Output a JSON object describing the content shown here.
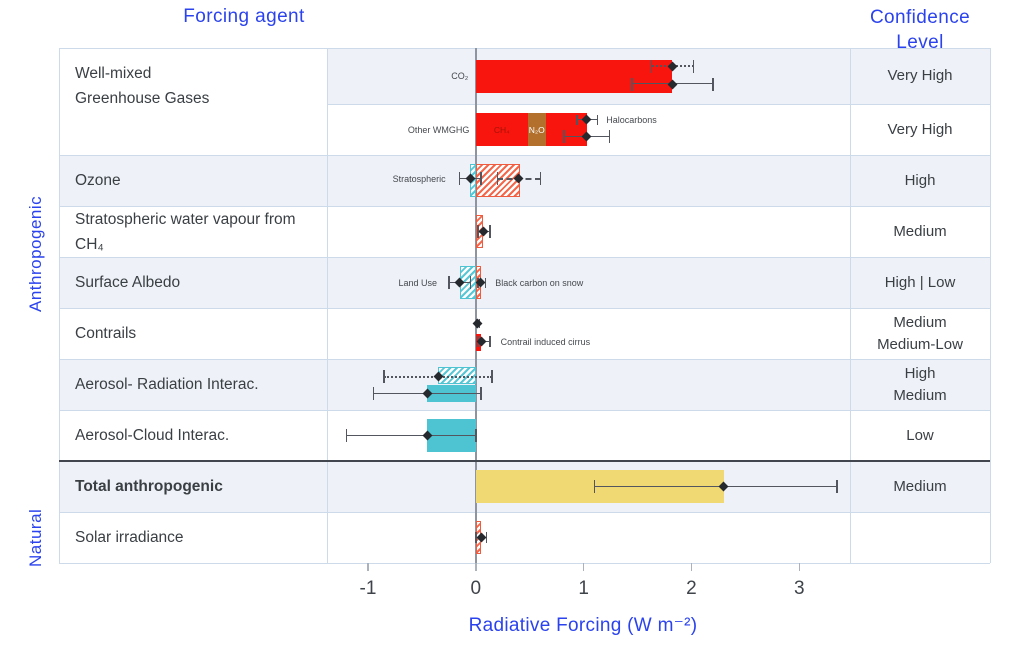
{
  "header": {
    "forcing_agent": "Forcing agent",
    "confidence_level": "Confidence Level"
  },
  "groups": {
    "anthropogenic": "Anthropogenic",
    "natural": "Natural"
  },
  "axis": {
    "label": "Radiative Forcing (W m⁻²)",
    "ticks": [
      -1,
      0,
      1,
      2,
      3
    ]
  },
  "colors": {
    "accent_blue": "#2b43ee",
    "red": "#f8150e",
    "brown": "#b2702c",
    "cyan": "#4ec4d3",
    "yellow": "#f0d973",
    "hatch_orange": "#ef5b3e",
    "row_alt_bg": "#eef2f8",
    "border": "#ccdaea",
    "dark_separator": "#42464e",
    "text_dark": "#3a3f44",
    "whisker": "#53565e"
  },
  "chart_data": {
    "type": "bar",
    "title": "",
    "xlabel": "Radiative Forcing (W m⁻²)",
    "xlim": [
      -1.38,
      3.47
    ],
    "legend": "none",
    "grid": false,
    "agent_cells": [
      {
        "lines": [
          "Well-mixed",
          "Greenhouse Gases"
        ],
        "rowspan": 2,
        "bold": false
      },
      {
        "lines": [
          "Ozone"
        ],
        "rowspan": 1,
        "bold": false
      },
      {
        "lines": [
          "Stratospheric water vapour from CH₄"
        ],
        "rowspan": 1,
        "bold": false
      },
      {
        "lines": [
          "Surface Albedo"
        ],
        "rowspan": 1,
        "bold": false
      },
      {
        "lines": [
          "Contrails"
        ],
        "rowspan": 1,
        "bold": false
      },
      {
        "lines": [
          "Aerosol- Radiation Interac."
        ],
        "rowspan": 1,
        "bold": false
      },
      {
        "lines": [
          "Aerosol-Cloud Interac."
        ],
        "rowspan": 1,
        "bold": false
      },
      {
        "lines": [
          "Total anthropogenic"
        ],
        "rowspan": 1,
        "bold": true
      },
      {
        "lines": [
          "Solar irradiance"
        ],
        "rowspan": 1,
        "bold": false
      }
    ],
    "rows": [
      {
        "id": "co2",
        "confidence": [
          "Very High"
        ],
        "bars": [
          {
            "from": 0,
            "to": 1.82,
            "style": "red",
            "band": "full"
          }
        ],
        "whiskers": [
          {
            "lo": 1.63,
            "mid": 1.82,
            "hi": 2.02,
            "style": "dotted",
            "dy": -10
          },
          {
            "lo": 1.45,
            "mid": 1.82,
            "hi": 2.2,
            "style": "solid",
            "dy": 8
          }
        ],
        "left_label": {
          "text": "CO₂",
          "at": -0.07,
          "dy": 0
        }
      },
      {
        "id": "other-wmghg",
        "confidence": [
          "Very High"
        ],
        "bars": [
          {
            "from": 0,
            "to": 0.48,
            "style": "red",
            "band": "full",
            "label": "CH₄",
            "label_color": "#a51208"
          },
          {
            "from": 0.48,
            "to": 0.65,
            "style": "brown",
            "band": "full",
            "label": "N₂O",
            "label_color": "#ffffff"
          },
          {
            "from": 0.65,
            "to": 1.03,
            "style": "red",
            "band": "full"
          }
        ],
        "whiskers": [
          {
            "lo": 0.94,
            "mid": 1.03,
            "hi": 1.13,
            "style": "solid",
            "dy": -10,
            "tick": 10
          },
          {
            "lo": 0.82,
            "mid": 1.03,
            "hi": 1.24,
            "style": "solid",
            "dy": 7
          }
        ],
        "left_label": {
          "text": "Other WMGHG",
          "at": -0.06,
          "dy": 0
        },
        "annotations": [
          {
            "text": "Halocarbons",
            "at": 1.21,
            "dy": -10
          }
        ]
      },
      {
        "id": "ozone",
        "confidence": [
          "High"
        ],
        "bars": [
          {
            "from": -0.05,
            "to": 0,
            "style": "cyan-hatch",
            "band": "full"
          },
          {
            "from": 0,
            "to": 0.41,
            "style": "red-hatch",
            "band": "full"
          }
        ],
        "whiskers": [
          {
            "lo": -0.15,
            "mid": -0.05,
            "hi": 0.05,
            "style": "solid",
            "dy": -2
          },
          {
            "lo": 0.2,
            "mid": 0.4,
            "hi": 0.6,
            "style": "dashed",
            "dy": -2
          }
        ],
        "left_label": {
          "text": "Stratospheric",
          "at": -0.28,
          "dy": -2
        }
      },
      {
        "id": "stratospheric-water-vapour",
        "confidence": [
          "Medium"
        ],
        "bars": [
          {
            "from": 0,
            "to": 0.07,
            "style": "red-hatch",
            "band": "full"
          }
        ],
        "whiskers": [
          {
            "lo": 0.02,
            "mid": 0.07,
            "hi": 0.13,
            "style": "solid",
            "dy": 0
          }
        ]
      },
      {
        "id": "surface-albedo",
        "confidence": [
          "High | Low"
        ],
        "bars": [
          {
            "from": -0.15,
            "to": 0,
            "style": "cyan-hatch",
            "band": "full"
          },
          {
            "from": 0,
            "to": 0.045,
            "style": "red-hatch",
            "band": "full"
          }
        ],
        "whiskers": [
          {
            "lo": -0.25,
            "mid": -0.15,
            "hi": -0.05,
            "style": "solid",
            "dy": 0
          },
          {
            "lo": 0.02,
            "mid": 0.04,
            "hi": 0.09,
            "style": "solid",
            "dy": 0,
            "tick": 10
          }
        ],
        "left_label": {
          "text": "Land Use",
          "at": -0.36,
          "dy": 0
        },
        "annotations": [
          {
            "text": "Black carbon on snow",
            "at": 0.18,
            "dy": 0
          }
        ]
      },
      {
        "id": "contrails",
        "confidence": [
          "Medium",
          "Medium-Low"
        ],
        "bars": [
          {
            "from": 0,
            "to": 0.05,
            "style": "red",
            "band": "lower"
          }
        ],
        "whiskers": [
          {
            "lo": 0.005,
            "mid": 0.012,
            "hi": 0.034,
            "style": "solid",
            "dy": -10,
            "tick": 9
          },
          {
            "lo": 0.02,
            "mid": 0.05,
            "hi": 0.13,
            "style": "solid",
            "dy": 8,
            "tick": 11
          }
        ],
        "annotations": [
          {
            "text": "Contrail induced cirrus",
            "at": 0.23,
            "dy": 8
          }
        ]
      },
      {
        "id": "aerosol-radiation-interaction",
        "confidence": [
          "High",
          "Medium"
        ],
        "bars": [
          {
            "from": -0.35,
            "to": 0,
            "style": "cyan-hatch",
            "band": "upper"
          },
          {
            "from": -0.45,
            "to": 0,
            "style": "cyan",
            "band": "lower"
          }
        ],
        "whiskers": [
          {
            "lo": -0.85,
            "mid": -0.35,
            "hi": 0.15,
            "style": "dotted",
            "dy": -8
          },
          {
            "lo": -0.95,
            "mid": -0.45,
            "hi": 0.05,
            "style": "solid",
            "dy": 9
          }
        ]
      },
      {
        "id": "aerosol-cloud-interaction",
        "confidence": [
          "Low"
        ],
        "bars": [
          {
            "from": -0.45,
            "to": 0,
            "style": "cyan",
            "band": "full"
          }
        ],
        "whiskers": [
          {
            "lo": -1.2,
            "mid": -0.45,
            "hi": 0.0,
            "style": "solid",
            "dy": 0
          }
        ]
      },
      {
        "id": "total-anthropogenic",
        "confidence": [
          "Medium"
        ],
        "bars": [
          {
            "from": 0,
            "to": 2.3,
            "style": "yellow",
            "band": "full"
          }
        ],
        "whiskers": [
          {
            "lo": 1.1,
            "mid": 2.3,
            "hi": 3.35,
            "style": "solid",
            "dy": 0
          }
        ]
      },
      {
        "id": "solar-irradiance",
        "confidence": [],
        "bars": [
          {
            "from": 0,
            "to": 0.05,
            "style": "red-hatch",
            "band": "full"
          }
        ],
        "whiskers": [
          {
            "lo": 0.0,
            "mid": 0.05,
            "hi": 0.1,
            "style": "solid",
            "dy": 0,
            "tick": 11
          }
        ]
      }
    ]
  }
}
